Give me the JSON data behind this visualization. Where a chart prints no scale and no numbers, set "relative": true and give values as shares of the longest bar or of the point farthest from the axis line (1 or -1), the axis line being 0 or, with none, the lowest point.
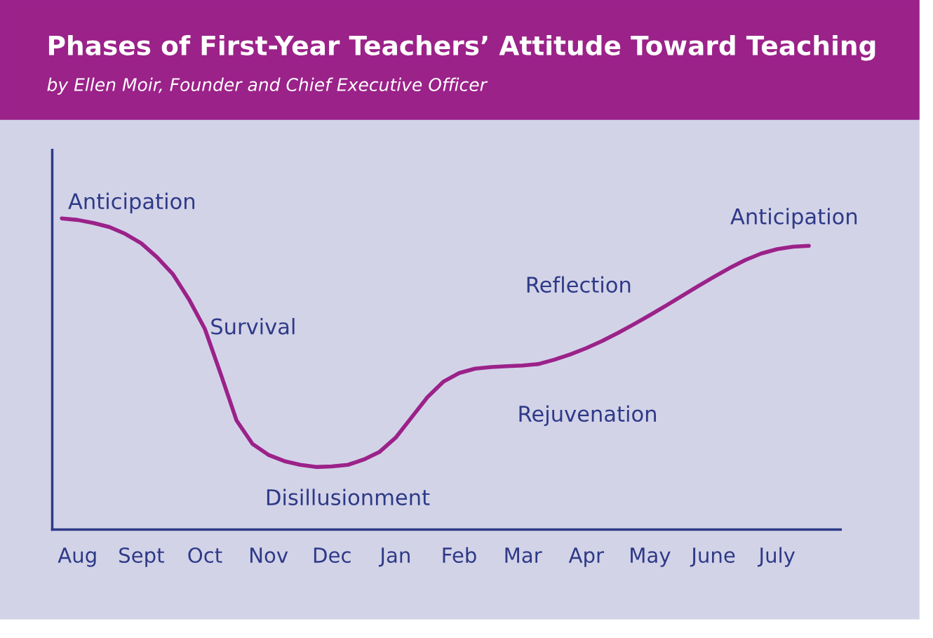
{
  "chart_data": {
    "type": "line",
    "title": "Phases of First-Year Teachers’ Attitude Toward Teaching",
    "subtitle": "by Ellen Moir, Founder and Chief Executive Officer",
    "relative": true,
    "tick_labels": "x",
    "grid": false,
    "legend": false,
    "marker": "none",
    "line_style": "solid",
    "categories": [
      null,
      "Aug",
      null,
      null,
      null,
      "Sept",
      null,
      null,
      null,
      "Oct",
      null,
      null,
      null,
      "Nov",
      null,
      null,
      null,
      "Dec",
      null,
      null,
      null,
      "Jan",
      null,
      null,
      null,
      "Feb",
      null,
      null,
      null,
      "Mar",
      null,
      null,
      null,
      "Apr",
      null,
      null,
      null,
      "May",
      null,
      null,
      null,
      "June",
      null,
      null,
      null,
      "July",
      null,
      null
    ],
    "series": [
      {
        "color": "#9b2289",
        "values": [
          1.0,
          0.995,
          0.985,
          0.972,
          0.95,
          0.92,
          0.875,
          0.82,
          0.74,
          0.645,
          0.5,
          0.35,
          0.275,
          0.24,
          0.22,
          0.208,
          0.201,
          0.203,
          0.208,
          0.225,
          0.25,
          0.295,
          0.36,
          0.425,
          0.475,
          0.503,
          0.517,
          0.522,
          0.525,
          0.527,
          0.532,
          0.546,
          0.563,
          0.583,
          0.606,
          0.632,
          0.66,
          0.689,
          0.719,
          0.75,
          0.781,
          0.811,
          0.84,
          0.866,
          0.887,
          0.901,
          0.909,
          0.912
        ]
      }
    ],
    "annotations": [
      "Anticipation",
      "Survival",
      "Disillusionment",
      "Rejuvenation",
      "Reflection",
      "Anticipation"
    ]
  }
}
